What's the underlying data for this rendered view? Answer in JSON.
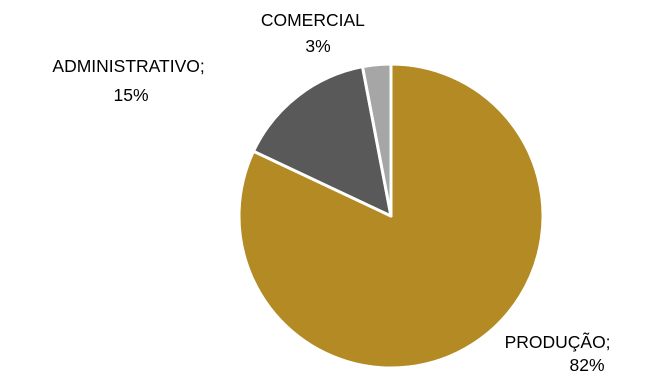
{
  "chart_data": {
    "type": "pie",
    "slices": [
      {
        "label": "PRODUÇÃO",
        "value": 82,
        "value_text": "82%",
        "separator": ";",
        "color": "#B38A23"
      },
      {
        "label": "ADMINISTRATIVO",
        "value": 15,
        "value_text": "15%",
        "separator": ";",
        "color": "#595959"
      },
      {
        "label": "COMERCIAL",
        "value": 3,
        "value_text": "3%",
        "separator": "",
        "color": "#A6A6A6"
      }
    ],
    "start_angle_deg": 0,
    "direction": "clockwise",
    "legend": "none",
    "data_labels": "outside"
  }
}
